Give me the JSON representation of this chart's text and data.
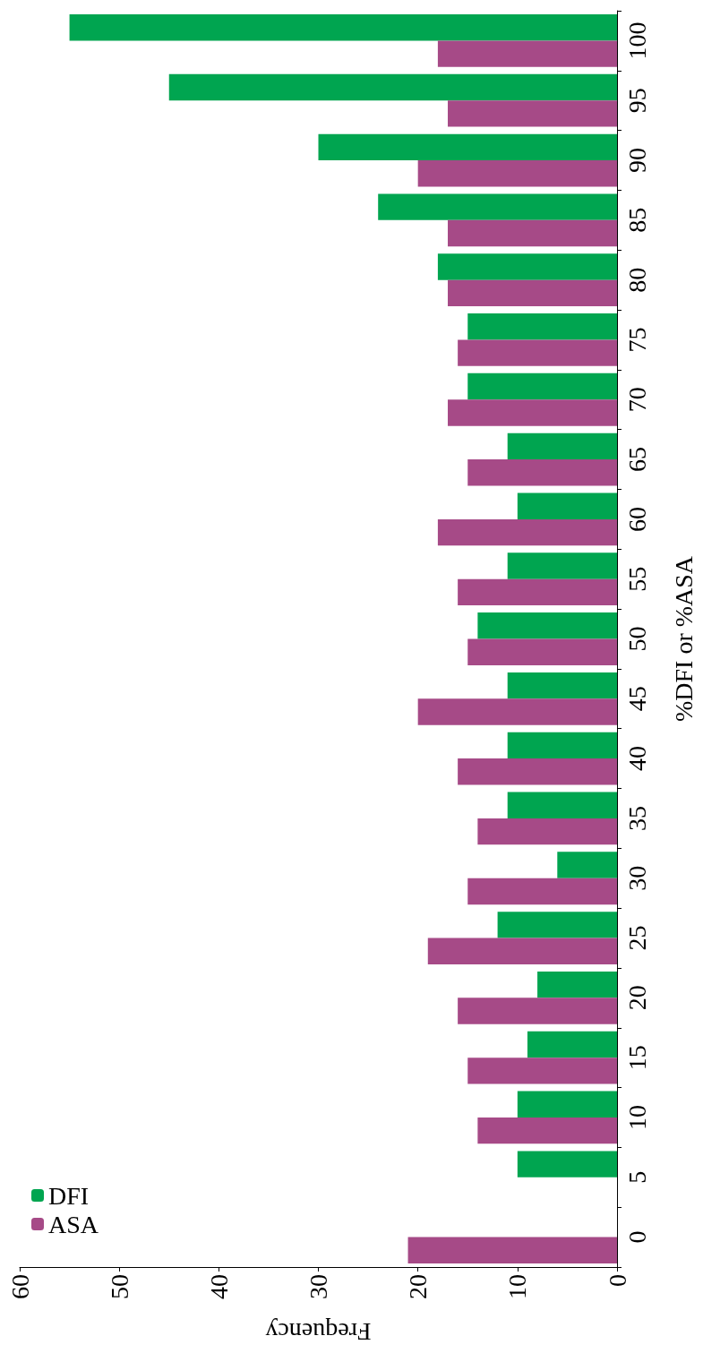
{
  "chart_data": {
    "type": "bar",
    "orientation": "horizontal",
    "xlabel": "Frequency",
    "ylabel": "%DFI or %ASA",
    "categories": [
      "100",
      "95",
      "90",
      "85",
      "80",
      "75",
      "70",
      "65",
      "60",
      "55",
      "50",
      "45",
      "40",
      "35",
      "30",
      "25",
      "20",
      "15",
      "10",
      "5",
      "0"
    ],
    "series": [
      {
        "name": "DFI",
        "color": "#00a550",
        "values": [
          55,
          45,
          30,
          24,
          18,
          15,
          15,
          11,
          10,
          11,
          14,
          11,
          11,
          11,
          6,
          12,
          8,
          9,
          10,
          10,
          0
        ]
      },
      {
        "name": "ASA",
        "color": "#a64a87",
        "values": [
          18,
          17,
          20,
          17,
          17,
          16,
          17,
          15,
          18,
          16,
          15,
          20,
          16,
          14,
          15,
          19,
          16,
          15,
          14,
          0,
          21
        ]
      }
    ],
    "xlim": [
      60,
      0
    ],
    "xticks": [
      0,
      10,
      20,
      30,
      40,
      50,
      60
    ],
    "legend": "bottom left",
    "grid": false
  }
}
